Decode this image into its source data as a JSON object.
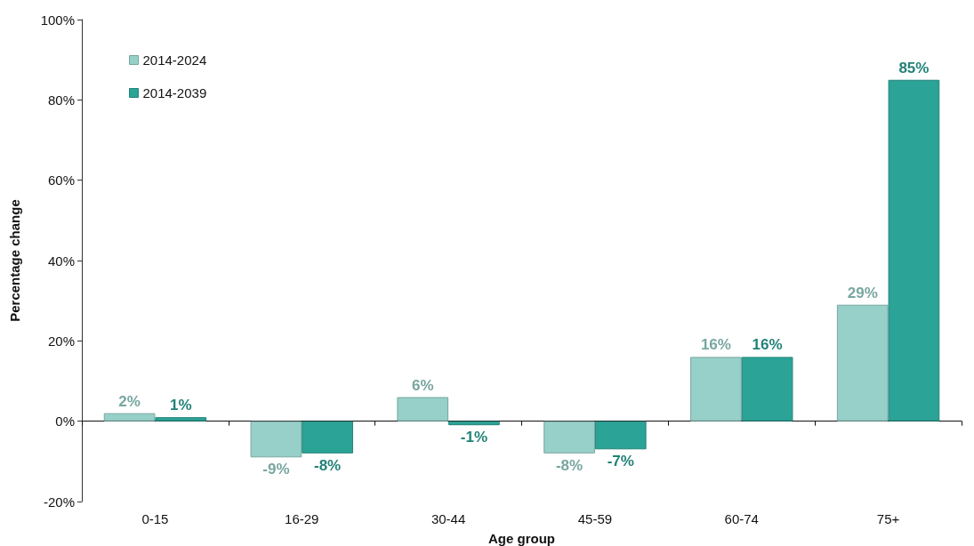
{
  "chart_data": {
    "type": "bar",
    "xlabel": "Age group",
    "ylabel": "Percentage change",
    "categories": [
      "0-15",
      "16-29",
      "30-44",
      "45-59",
      "60-74",
      "75+"
    ],
    "series": [
      {
        "name": "2014-2024",
        "color": "#96d0c8",
        "values": [
          2,
          -9,
          6,
          -8,
          16,
          29
        ],
        "value_labels": [
          "2%",
          "-9%",
          "6%",
          "-8%",
          "16%",
          "29%"
        ]
      },
      {
        "name": "2014-2039",
        "color": "#2ba396",
        "values": [
          1,
          -8,
          -1,
          -7,
          16,
          85
        ],
        "value_labels": [
          "1%",
          "-8%",
          "-1%",
          "-7%",
          "16%",
          "85%"
        ]
      }
    ],
    "ylim": [
      -20,
      100
    ],
    "yticks": [
      {
        "value": -20,
        "label": "-20%"
      },
      {
        "value": 0,
        "label": "0%"
      },
      {
        "value": 20,
        "label": "20%"
      },
      {
        "value": 40,
        "label": "40%"
      },
      {
        "value": 60,
        "label": "60%"
      },
      {
        "value": 80,
        "label": "80%"
      },
      {
        "value": 100,
        "label": "100%"
      }
    ],
    "legend": "top left"
  }
}
